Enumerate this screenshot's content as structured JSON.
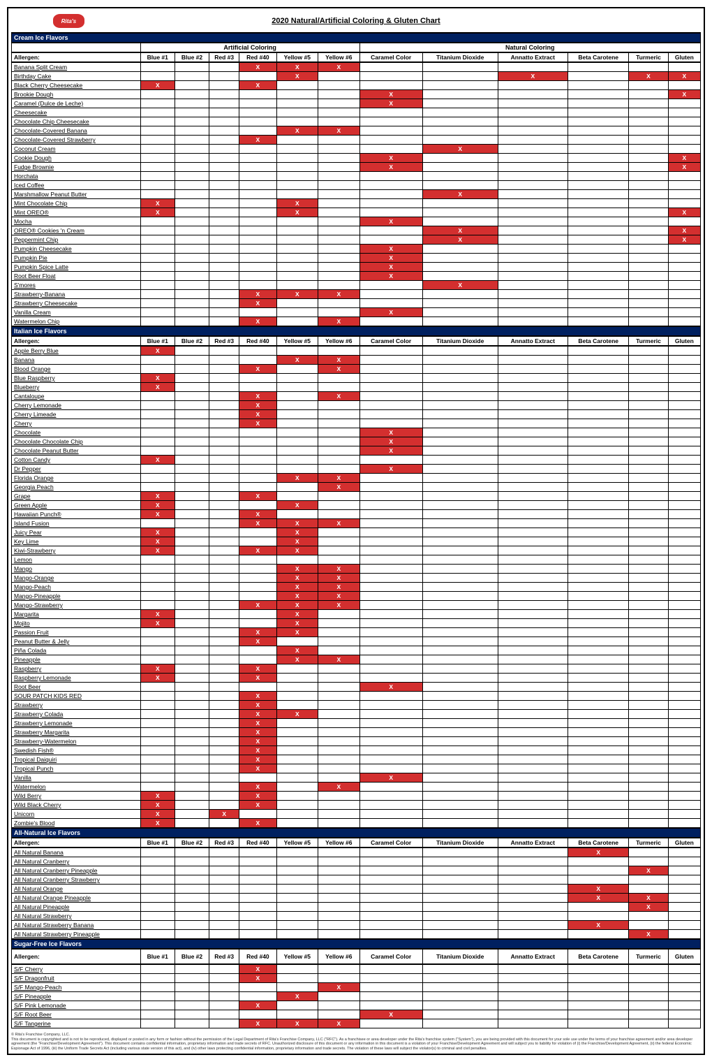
{
  "title": "2020 Natural/Artificial Coloring & Gluten Chart",
  "logo_text": "Rita's",
  "columns": [
    "Allergen:",
    "Blue #1",
    "Blue #2",
    "Red #3",
    "Red #40",
    "Yellow #5",
    "Yellow #6",
    "Caramel Color",
    "Titanium Dioxide",
    "Annatto Extract",
    "Beta Carotene",
    "Turmeric",
    "Gluten"
  ],
  "group_artificial": "Artificial Coloring",
  "group_natural": "Natural Coloring",
  "mark": "X",
  "colors": {
    "mark_bg": "#d32f2f",
    "mark_fg": "#ffffff",
    "section_bg": "#002060",
    "section_fg": "#ffffff"
  },
  "sections": [
    {
      "name": "Cream Ice Flavors",
      "show_groups": true,
      "show_headers": true,
      "rows": [
        {
          "n": "Banana Split Cream",
          "x": [
            4,
            5,
            6
          ]
        },
        {
          "n": "Birthday Cake",
          "x": [
            5,
            9,
            11,
            12
          ]
        },
        {
          "n": "Black Cherry Cheesecake",
          "x": [
            1,
            4
          ]
        },
        {
          "n": "Brookie Dough",
          "x": [
            7,
            12
          ]
        },
        {
          "n": "Caramel (Dulce de Leche)",
          "x": [
            7
          ]
        },
        {
          "n": "Cheesecake",
          "x": []
        },
        {
          "n": "Chocolate Chip Cheesecake",
          "x": []
        },
        {
          "n": "Chocolate-Covered Banana",
          "x": [
            5,
            6
          ]
        },
        {
          "n": "Chocolate-Covered Strawberry",
          "x": [
            4
          ]
        },
        {
          "n": "Coconut Cream",
          "x": [
            8
          ]
        },
        {
          "n": "Cookie Dough",
          "x": [
            7,
            12
          ]
        },
        {
          "n": "Fudge Brownie",
          "x": [
            7,
            12
          ]
        },
        {
          "n": "Horchata",
          "x": []
        },
        {
          "n": "Iced Coffee",
          "x": []
        },
        {
          "n": "Marshmallow Peanut Butter",
          "x": [
            8
          ]
        },
        {
          "n": "Mint Chocolate Chip",
          "x": [
            1,
            5
          ]
        },
        {
          "n": "Mint OREO®",
          "x": [
            1,
            5,
            12
          ]
        },
        {
          "n": "Mocha",
          "x": [
            7
          ]
        },
        {
          "n": "OREO® Cookies 'n Cream",
          "x": [
            8,
            12
          ]
        },
        {
          "n": "Peppermint Chip",
          "x": [
            8,
            12
          ]
        },
        {
          "n": "Pumpkin Cheesecake",
          "x": [
            7
          ]
        },
        {
          "n": "Pumpkin Pie",
          "x": [
            7
          ]
        },
        {
          "n": "Pumpkin Spice Latte",
          "x": [
            7
          ]
        },
        {
          "n": "Root Beer Float",
          "x": [
            7
          ]
        },
        {
          "n": "S'mores",
          "x": [
            8
          ]
        },
        {
          "n": "Strawberry-Banana",
          "x": [
            4,
            5,
            6
          ]
        },
        {
          "n": "Strawberry Cheesecake",
          "x": [
            4
          ]
        },
        {
          "n": "Vanilla Cream",
          "x": [
            7
          ]
        },
        {
          "n": "Watermelon Chip",
          "x": [
            4,
            6
          ]
        }
      ]
    },
    {
      "name": "Italian Ice Flavors",
      "show_groups": false,
      "show_headers": true,
      "rows": [
        {
          "n": "Apple Berry Blue",
          "x": [
            1
          ]
        },
        {
          "n": "Banana",
          "x": [
            5,
            6
          ]
        },
        {
          "n": "Blood Orange",
          "x": [
            4,
            6
          ]
        },
        {
          "n": "Blue Raspberry",
          "x": [
            1
          ]
        },
        {
          "n": "Blueberry",
          "x": [
            1
          ]
        },
        {
          "n": "Cantaloupe",
          "x": [
            4,
            6
          ]
        },
        {
          "n": "Cherry Lemonade",
          "x": [
            4
          ]
        },
        {
          "n": "Cherry Limeade",
          "x": [
            4
          ]
        },
        {
          "n": "Cherry",
          "x": [
            4
          ]
        },
        {
          "n": "Chocolate",
          "x": [
            7
          ]
        },
        {
          "n": "Chocolate Chocolate Chip",
          "x": [
            7
          ]
        },
        {
          "n": "Chocolate Peanut Butter",
          "x": [
            7
          ]
        },
        {
          "n": "Cotton Candy",
          "x": [
            1
          ]
        },
        {
          "n": "Dr Pepper",
          "x": [
            7
          ]
        },
        {
          "n": "Florida Orange",
          "x": [
            5,
            6
          ]
        },
        {
          "n": "Georgia Peach",
          "x": [
            6
          ]
        },
        {
          "n": "Grape",
          "x": [
            1,
            4
          ]
        },
        {
          "n": "Green Apple",
          "x": [
            1,
            5
          ]
        },
        {
          "n": "Hawaiian Punch®",
          "x": [
            1,
            4
          ]
        },
        {
          "n": "Island Fusion",
          "x": [
            4,
            5,
            6
          ]
        },
        {
          "n": "Juicy Pear",
          "x": [
            1,
            5
          ]
        },
        {
          "n": "Key Lime",
          "x": [
            1,
            5
          ]
        },
        {
          "n": "Kiwi-Strawberry",
          "x": [
            1,
            4,
            5
          ]
        },
        {
          "n": "Lemon",
          "x": []
        },
        {
          "n": "Mango",
          "x": [
            5,
            6
          ]
        },
        {
          "n": "Mango-Orange",
          "x": [
            5,
            6
          ]
        },
        {
          "n": "Mango-Peach",
          "x": [
            5,
            6
          ]
        },
        {
          "n": "Mango-Pineapple",
          "x": [
            5,
            6
          ]
        },
        {
          "n": "Mango-Strawberry",
          "x": [
            4,
            5,
            6
          ]
        },
        {
          "n": "Margarita",
          "x": [
            1,
            5
          ]
        },
        {
          "n": "Mojito",
          "x": [
            1,
            5
          ]
        },
        {
          "n": "Passion Fruit",
          "x": [
            4,
            5
          ]
        },
        {
          "n": "Peanut Butter & Jelly",
          "x": [
            4
          ]
        },
        {
          "n": "Piña Colada",
          "x": [
            5
          ]
        },
        {
          "n": "Pineapple",
          "x": [
            5,
            6
          ]
        },
        {
          "n": "Raspberry",
          "x": [
            1,
            4
          ]
        },
        {
          "n": "Raspberry Lemonade",
          "x": [
            1,
            4
          ]
        },
        {
          "n": "Root Beer",
          "x": [
            7
          ]
        },
        {
          "n": "SOUR PATCH KIDS RED",
          "x": [
            4
          ]
        },
        {
          "n": "Strawberry",
          "x": [
            4
          ]
        },
        {
          "n": "Strawberry Colada",
          "x": [
            4,
            5
          ]
        },
        {
          "n": "Strawberry Lemonade",
          "x": [
            4
          ]
        },
        {
          "n": "Strawberry Margarita",
          "x": [
            4
          ]
        },
        {
          "n": "Strawberry-Watermelon",
          "x": [
            4
          ]
        },
        {
          "n": "Swedish Fish®",
          "x": [
            4
          ]
        },
        {
          "n": "Tropical Daiquiri",
          "x": [
            4
          ]
        },
        {
          "n": "Tropical Punch",
          "x": [
            4
          ]
        },
        {
          "n": "Vanilla",
          "x": [
            7
          ]
        },
        {
          "n": "Watermelon",
          "x": [
            4,
            6
          ]
        },
        {
          "n": "Wild Berry",
          "x": [
            1,
            4
          ]
        },
        {
          "n": "Wild Black Cherry",
          "x": [
            1,
            4
          ]
        },
        {
          "n": "Unicorn",
          "x": [
            1,
            3
          ]
        },
        {
          "n": "Zombie's Blood",
          "x": [
            1,
            4
          ]
        }
      ]
    },
    {
      "name": "All-Natural Ice Flavors",
      "show_groups": false,
      "show_headers": true,
      "rows": [
        {
          "n": "All Natural Banana",
          "x": [
            10
          ]
        },
        {
          "n": "All Natural Cranberry",
          "x": []
        },
        {
          "n": "All Natural Cranberry Pineapple",
          "x": [
            11
          ]
        },
        {
          "n": "All Natural Cranberry Strawberry",
          "x": []
        },
        {
          "n": "All Natural Orange",
          "x": [
            10
          ]
        },
        {
          "n": "All Natural Orange Pineapple",
          "x": [
            10,
            11
          ]
        },
        {
          "n": "All Natural Pineapple",
          "x": [
            11
          ]
        },
        {
          "n": "All Natural Strawberry",
          "x": []
        },
        {
          "n": "All Natural Strawberry Banana",
          "x": [
            10
          ]
        },
        {
          "n": "All Natural Strawberry Pineapple",
          "x": [
            11
          ]
        }
      ]
    },
    {
      "name": "Sugar-Free Ice Flavors",
      "show_groups": false,
      "show_headers": true,
      "tall_header": true,
      "rows": [
        {
          "n": "S/F Cherry",
          "x": [
            4
          ]
        },
        {
          "n": "S/F Dragonfruit",
          "x": [
            4
          ]
        },
        {
          "n": "S/F Mango-Peach",
          "x": [
            6
          ]
        },
        {
          "n": "S/F Pineapple",
          "x": [
            5
          ]
        },
        {
          "n": "S/F Pink Lemonade",
          "x": [
            4
          ]
        },
        {
          "n": "S/F Root Beer",
          "x": [
            7
          ]
        },
        {
          "n": "S/F Tangerine",
          "x": [
            4,
            5,
            6
          ]
        }
      ]
    }
  ],
  "footer": {
    "line1": "© Rita's Franchise Company, LLC.",
    "line2": "This document is copyrighted and is not to be reproduced, displayed or posted in any form or fashion without the permission of the Legal Department of Rita's Franchise Company, LLC (\"RFC\"). As a franchisee or area developer under the Rita's franchise system (\"System\"), you are being provided with this document for your sole use under the terms of your franchise agreement and/or area developer agreement (the \"Franchise/Development Agreement\"). This document contains confidential information, proprietary information and trade secrets of RFC. Unauthorized disclosure of this document or any information in this document is a violation of your Franchise/Development Agreement and will subject you to liability for violation of (i) the Franchise/Development Agreement, (ii) the federal Economic Espionage Act of 1996, (iii) the Uniform Trade Secrets Act (including various state version of this act), and (iv) other laws protecting confidential information, proprietary information and trade secrets. The violation of these laws will subject the violator(s) to criminal and civil penalties."
  }
}
